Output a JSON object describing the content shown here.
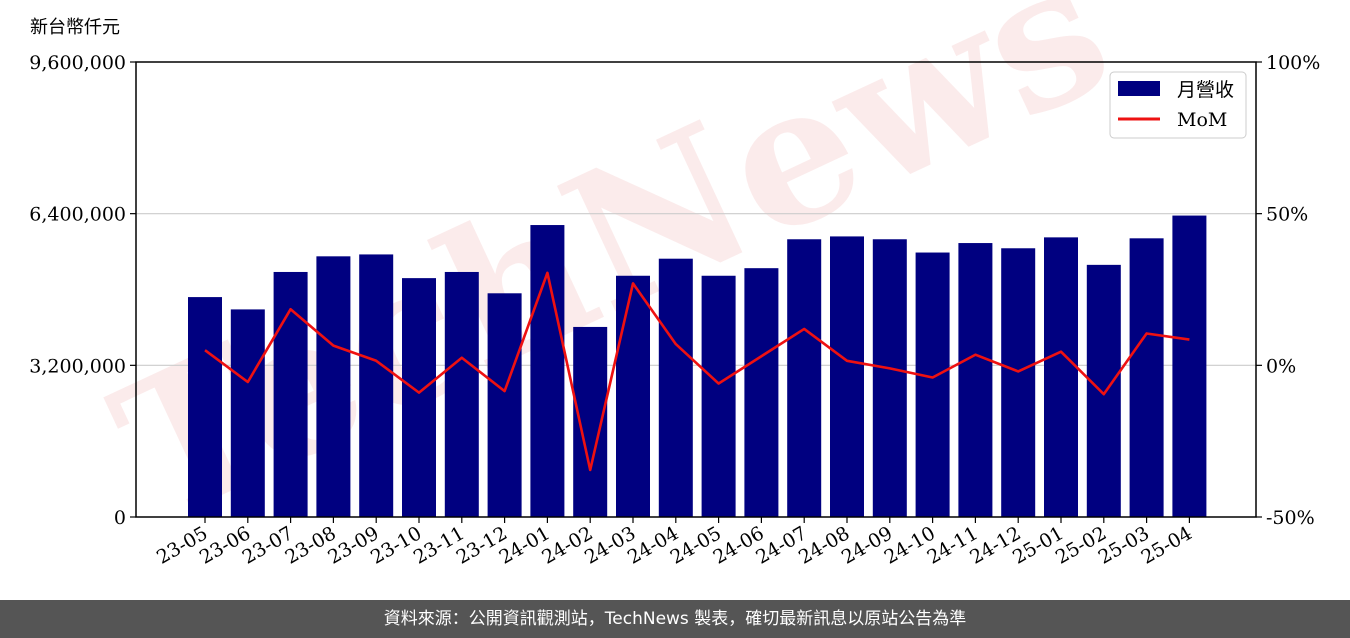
{
  "chart_data": {
    "type": "bar",
    "unit_label": "新台幣仟元",
    "categories": [
      "23-05",
      "23-06",
      "23-07",
      "23-08",
      "23-09",
      "23-10",
      "23-11",
      "23-12",
      "24-01",
      "24-02",
      "24-03",
      "24-04",
      "24-05",
      "24-06",
      "24-07",
      "24-08",
      "24-09",
      "24-10",
      "24-11",
      "24-12",
      "25-01",
      "25-02",
      "25-03",
      "25-04"
    ],
    "series": [
      {
        "name": "月營收",
        "kind": "bar",
        "axis": "left",
        "color": "#000080",
        "values": [
          4640000,
          4380000,
          5170000,
          5500000,
          5540000,
          5040000,
          5170000,
          4720000,
          6160000,
          4010000,
          5090000,
          5450000,
          5090000,
          5250000,
          5860000,
          5920000,
          5860000,
          5580000,
          5780000,
          5670000,
          5900000,
          5320000,
          5880000,
          6360000
        ]
      },
      {
        "name": "MoM",
        "kind": "line",
        "axis": "right",
        "color": "#ee1111",
        "values": [
          5.0,
          -5.5,
          18.5,
          6.5,
          1.5,
          -9.0,
          2.5,
          -8.5,
          30.5,
          -34.5,
          27.0,
          7.0,
          -6.0,
          3.0,
          12.0,
          1.5,
          -1.0,
          -4.0,
          3.5,
          -2.0,
          4.5,
          -9.5,
          10.5,
          8.5
        ]
      }
    ],
    "y_left": {
      "min": 0,
      "max": 9600000,
      "ticks": [
        0,
        3200000,
        6400000,
        9600000
      ],
      "tick_labels": [
        "0",
        "3,200,000",
        "6,400,000",
        "9,600,000"
      ]
    },
    "y_right": {
      "min": -50,
      "max": 100,
      "ticks": [
        -50,
        0,
        50,
        100
      ],
      "tick_labels": [
        "-50%",
        "0%",
        "50%",
        "100%"
      ]
    },
    "grid": "horizontal",
    "legend": "top-right",
    "watermark": "TechNews"
  },
  "footer": {
    "source_text": "資料來源：公開資訊觀測站，TechNews 製表，確切最新訊息以原站公告為準"
  }
}
